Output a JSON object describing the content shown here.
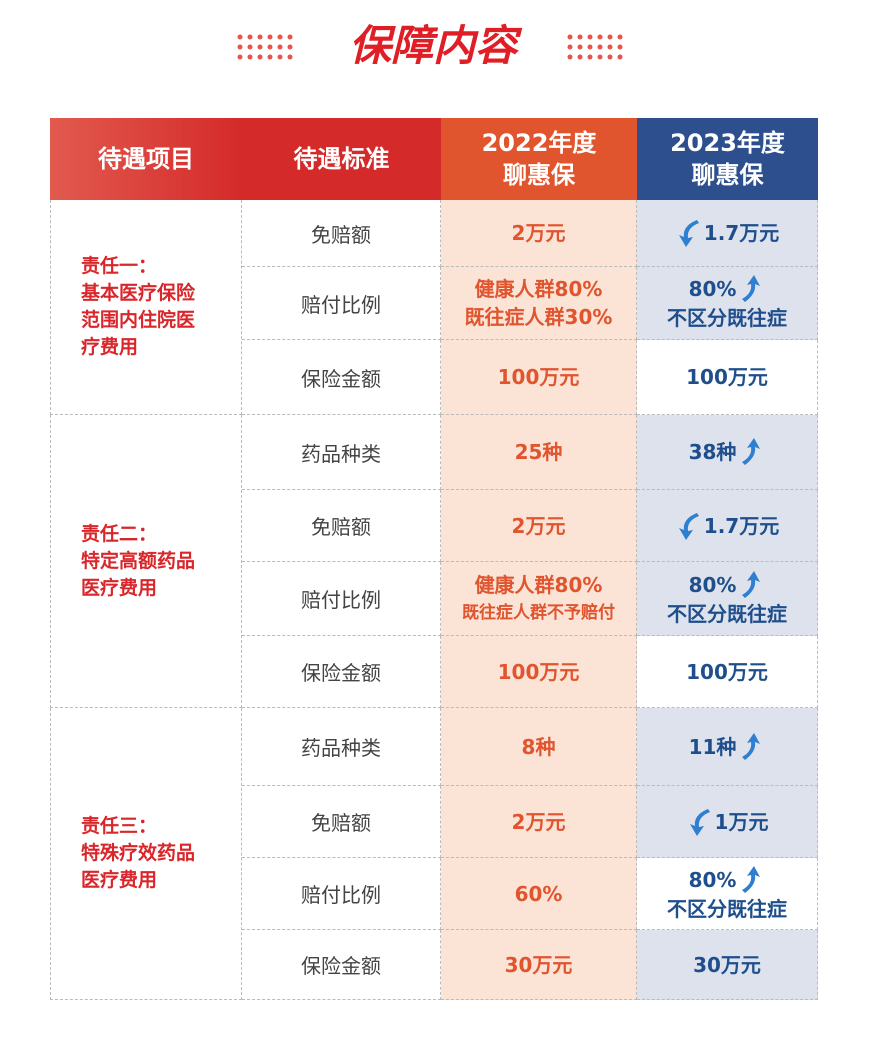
{
  "title": "保障内容",
  "header": {
    "item": "待遇项目",
    "standard": "待遇标准",
    "y2022": [
      "2022年度",
      "聊惠保"
    ],
    "y2023": [
      "2023年度",
      "聊惠保"
    ]
  },
  "groups": [
    {
      "name": [
        "责任一：",
        "基本医疗保险",
        "范围内住院医",
        "疗费用"
      ],
      "rows": [
        {
          "item": "免赔额",
          "y2022": [
            "2万元"
          ],
          "y2023": [
            "1.7万元"
          ]
        },
        {
          "item": "赔付比例",
          "y2022": [
            "健康人群80%",
            "既往症人群30%"
          ],
          "y2023": [
            "80%",
            "不区分既往症"
          ]
        },
        {
          "item": "保险金额",
          "y2022": [
            "100万元"
          ],
          "y2023": [
            "100万元"
          ]
        }
      ]
    },
    {
      "name": [
        "责任二：",
        "特定高额药品",
        "医疗费用"
      ],
      "rows": [
        {
          "item": "药品种类",
          "y2022": [
            "25种"
          ],
          "y2023": [
            "38种"
          ]
        },
        {
          "item": "免赔额",
          "y2022": [
            "2万元"
          ],
          "y2023": [
            "1.7万元"
          ]
        },
        {
          "item": "赔付比例",
          "y2022": [
            "健康人群80%",
            "既往症人群不予赔付"
          ],
          "y2023": [
            "80%",
            "不区分既往症"
          ]
        },
        {
          "item": "保险金额",
          "y2022": [
            "100万元"
          ],
          "y2023": [
            "100万元"
          ]
        }
      ]
    },
    {
      "name": [
        "责任三：",
        "特殊疗效药品",
        "医疗费用"
      ],
      "rows": [
        {
          "item": "药品种类",
          "y2022": [
            "8种"
          ],
          "y2023": [
            "11种"
          ]
        },
        {
          "item": "免赔额",
          "y2022": [
            "2万元"
          ],
          "y2023": [
            "1万元"
          ]
        },
        {
          "item": "赔付比例",
          "y2022": [
            "60%"
          ],
          "y2023": [
            "80%",
            "不区分既往症"
          ]
        },
        {
          "item": "保险金额",
          "y2022": [
            "30万元"
          ],
          "y2023": [
            "30万元"
          ]
        }
      ]
    }
  ]
}
